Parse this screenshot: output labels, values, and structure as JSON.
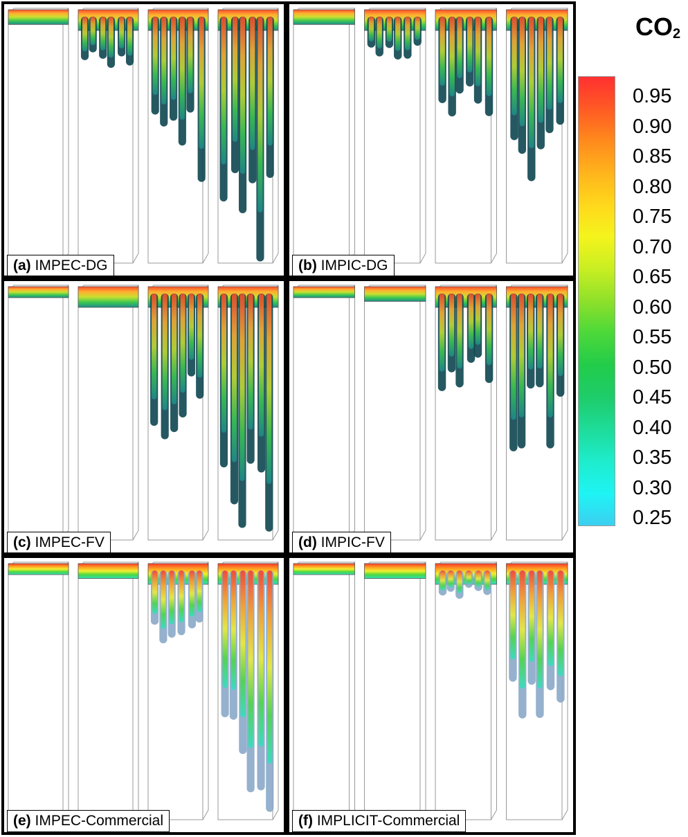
{
  "panels": [
    {
      "letter": "(a)",
      "name": "IMPEC-DG",
      "depths": [
        0.06,
        0.22,
        0.68,
        1.0
      ],
      "scheme": "dg"
    },
    {
      "letter": "(b)",
      "name": "IMPIC-DG",
      "depths": [
        0.06,
        0.18,
        0.48,
        0.72
      ],
      "scheme": "dg"
    },
    {
      "letter": "(c)",
      "name": "IMPEC-FV",
      "depths": [
        0.03,
        0.1,
        0.6,
        0.97
      ],
      "scheme": "fv"
    },
    {
      "letter": "(d)",
      "name": "IMPIC-FV",
      "depths": [
        0.03,
        0.06,
        0.42,
        0.68
      ],
      "scheme": "fv"
    },
    {
      "letter": "(e)",
      "name": "IMPEC-Commercial",
      "depths": [
        0.03,
        0.06,
        0.38,
        1.0
      ],
      "scheme": "com"
    },
    {
      "letter": "(f)",
      "name": "IMPLICIT-Commercial",
      "depths": [
        0.03,
        0.06,
        0.12,
        0.62
      ],
      "scheme": "com"
    }
  ],
  "legend": {
    "title": "CO",
    "subscript": "2",
    "ticks": [
      "0.95",
      "0.90",
      "0.85",
      "0.80",
      "0.75",
      "0.70",
      "0.65",
      "0.60",
      "0.55",
      "0.50",
      "0.45",
      "0.40",
      "0.35",
      "0.30",
      "0.25"
    ],
    "colors": [
      "#ff3030",
      "#ff5a24",
      "#ff8a1c",
      "#ffb41c",
      "#ffd81c",
      "#f4f41c",
      "#c8ee22",
      "#8ee02a",
      "#4cd83a",
      "#22cc4a",
      "#1ecc6a",
      "#1edc9a",
      "#1eeccc",
      "#1ef4f4",
      "#3ccff0"
    ]
  }
}
